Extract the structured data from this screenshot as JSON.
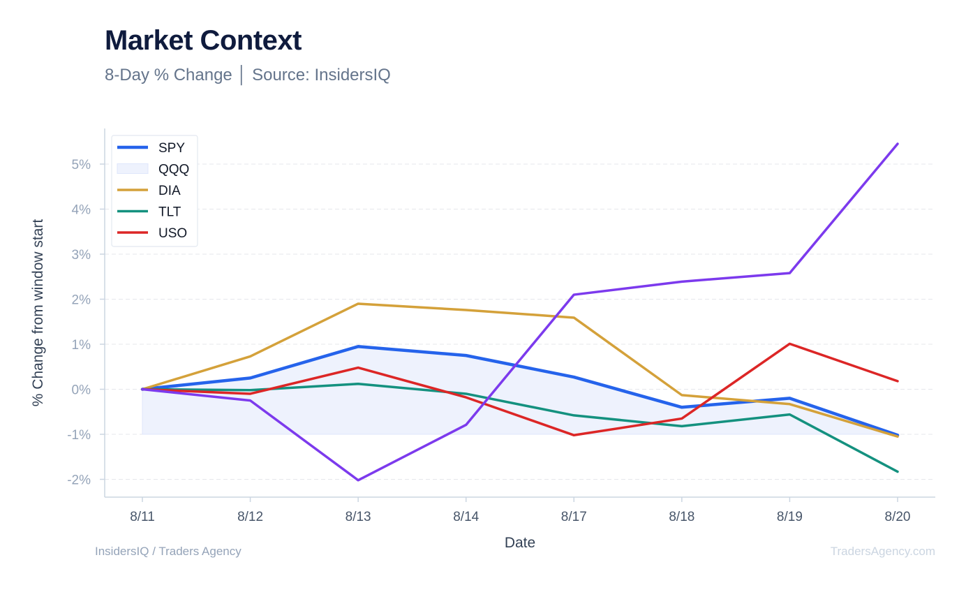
{
  "header": {
    "title": "Market Context",
    "subtitle": "8-Day % Change │ Source: InsidersIQ"
  },
  "footer": {
    "left": "InsidersIQ / Traders Agency",
    "right": "TradersAgency.com"
  },
  "colors": {
    "SPY": "#2563eb",
    "QQQ": "#7c3aed",
    "QQQ_fill": "#eef2fd",
    "DIA": "#d4a13a",
    "TLT": "#14917f",
    "USO": "#dc2626",
    "grid": "#e5e7eb",
    "axis": "#cbd5e1"
  },
  "chart_data": {
    "type": "line",
    "xlabel": "Date",
    "ylabel": "% Change from window start",
    "categories": [
      "8/11",
      "8/12",
      "8/13",
      "8/14",
      "8/17",
      "8/18",
      "8/19",
      "8/20"
    ],
    "ylim": [
      -2.4,
      5.8
    ],
    "yticks": [
      -2,
      -1,
      0,
      1,
      2,
      3,
      4,
      5
    ],
    "ytick_labels": [
      "-2%",
      "-1%",
      "0%",
      "1%",
      "2%",
      "3%",
      "4%",
      "5%"
    ],
    "grid": true,
    "legend_position": "top-left",
    "legend": [
      {
        "name": "SPY",
        "style": "line"
      },
      {
        "name": "QQQ",
        "style": "band"
      },
      {
        "name": "DIA",
        "style": "line"
      },
      {
        "name": "TLT",
        "style": "line"
      },
      {
        "name": "USO",
        "style": "line"
      }
    ],
    "band": {
      "name": "QQQ",
      "baseline": -1.0,
      "follows": "SPY"
    },
    "series": [
      {
        "name": "SPY",
        "values": [
          0.0,
          0.25,
          0.95,
          0.75,
          0.27,
          -0.4,
          -0.2,
          -1.02
        ],
        "width": 4.5
      },
      {
        "name": "DIA",
        "values": [
          0.0,
          0.73,
          1.9,
          1.76,
          1.59,
          -0.13,
          -0.33,
          -1.05
        ],
        "width": 3.5
      },
      {
        "name": "TLT",
        "values": [
          0.0,
          -0.02,
          0.12,
          -0.1,
          -0.58,
          -0.82,
          -0.56,
          -1.83
        ],
        "width": 3.5
      },
      {
        "name": "USO",
        "values": [
          0.0,
          -0.1,
          0.48,
          -0.18,
          -1.02,
          -0.65,
          1.01,
          0.18
        ],
        "width": 3.5
      },
      {
        "name": "QQQ",
        "values": [
          0.0,
          -0.25,
          -2.02,
          -0.79,
          2.1,
          2.39,
          2.58,
          5.45
        ],
        "width": 3.5
      }
    ]
  }
}
